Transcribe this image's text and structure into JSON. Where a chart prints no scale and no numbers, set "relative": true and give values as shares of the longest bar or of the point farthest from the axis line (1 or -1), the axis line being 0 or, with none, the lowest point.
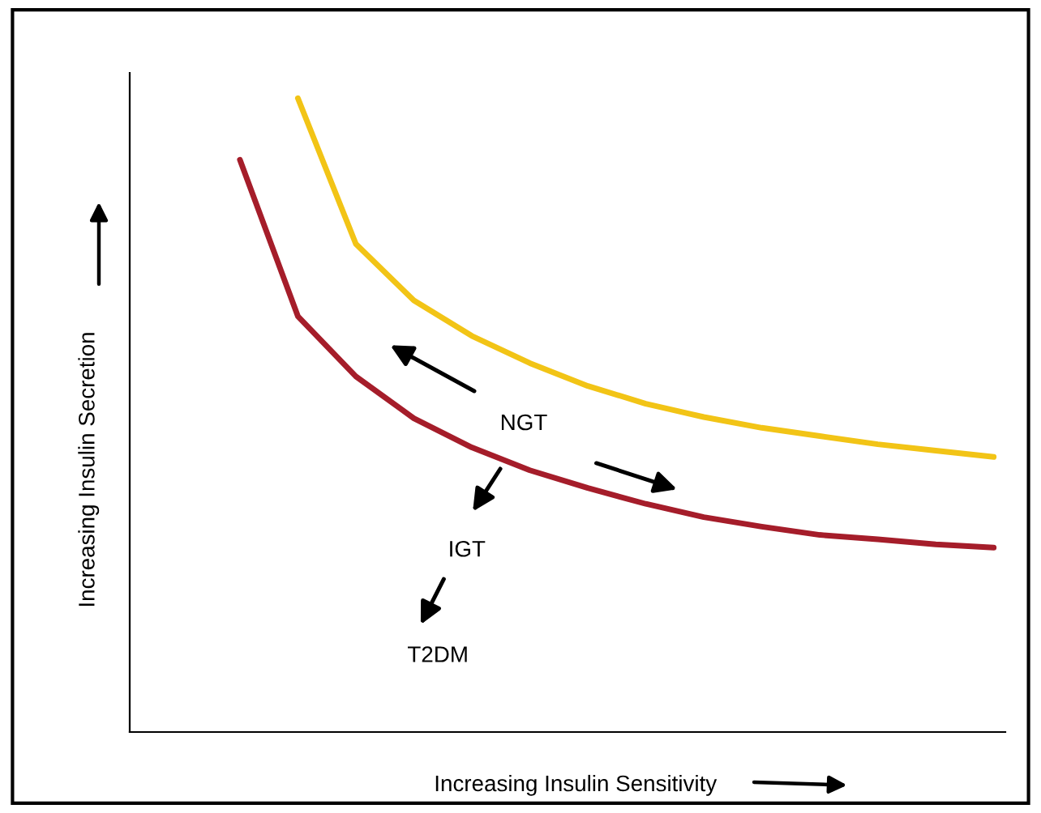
{
  "chart_data": {
    "type": "line",
    "relative": true,
    "xlabel": "Increasing Insulin Sensitivity",
    "ylabel": "Increasing Insulin Secretion",
    "annotations": [
      "NGT",
      "IGT",
      "T2DM"
    ],
    "categories": [
      null,
      null,
      null,
      null,
      null,
      null,
      null,
      null,
      null,
      null,
      null,
      null,
      null,
      null
    ],
    "series": [
      {
        "color": "#f2c416",
        "values": [
          null,
          1.0,
          0.77,
          0.681,
          0.625,
          0.582,
          0.546,
          0.518,
          0.497,
          0.48,
          0.467,
          0.454,
          0.444,
          0.434
        ]
      },
      {
        "color": "#a51d2a",
        "values": [
          0.903,
          0.656,
          0.561,
          0.495,
          0.449,
          0.413,
          0.385,
          0.36,
          0.339,
          0.324,
          0.311,
          0.304,
          0.296,
          0.291
        ]
      }
    ]
  }
}
